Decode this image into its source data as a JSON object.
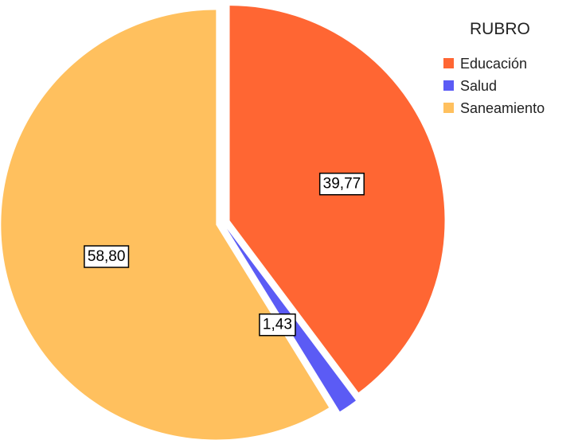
{
  "chart_data": {
    "type": "pie",
    "title": "",
    "legend": {
      "title": "RUBRO",
      "position": "top-right"
    },
    "slices": [
      {
        "name": "Educación",
        "value": 39.77,
        "label": "39,77",
        "color": "#FF6633"
      },
      {
        "name": "Salud",
        "value": 1.43,
        "label": "1,43",
        "color": "#5B5BF5"
      },
      {
        "name": "Saneamiento",
        "value": 58.8,
        "label": "58,80",
        "color": "#FFC05E"
      }
    ]
  }
}
